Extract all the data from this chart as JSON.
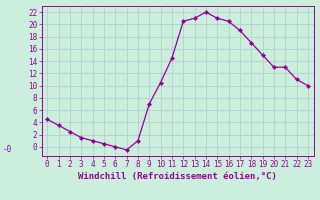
{
  "x": [
    0,
    1,
    2,
    3,
    4,
    5,
    6,
    7,
    8,
    9,
    10,
    11,
    12,
    13,
    14,
    15,
    16,
    17,
    18,
    19,
    20,
    21,
    22,
    23
  ],
  "y": [
    4.5,
    3.5,
    2.5,
    1.5,
    1.0,
    0.5,
    0.0,
    -0.5,
    1.0,
    7.0,
    10.5,
    14.5,
    20.5,
    21.0,
    22.0,
    21.0,
    20.5,
    19.0,
    17.0,
    15.0,
    13.0,
    13.0,
    11.0,
    10.0
  ],
  "line_color": "#990099",
  "marker": "D",
  "marker_size": 2.0,
  "bg_color": "#cceedd",
  "grid_color": "#aacccc",
  "xlabel": "Windchill (Refroidissement éolien,°C)",
  "xlabel_color": "#990099",
  "ylim": [
    -1.5,
    23
  ],
  "xlim": [
    -0.5,
    23.5
  ],
  "yticks": [
    0,
    2,
    4,
    6,
    8,
    10,
    12,
    14,
    16,
    18,
    20,
    22
  ],
  "ytick_labels": [
    "0",
    "2",
    "4",
    "6",
    "8",
    "10",
    "12",
    "14",
    "16",
    "18",
    "20",
    "22"
  ],
  "xticks": [
    0,
    1,
    2,
    3,
    4,
    5,
    6,
    7,
    8,
    9,
    10,
    11,
    12,
    13,
    14,
    15,
    16,
    17,
    18,
    19,
    20,
    21,
    22,
    23
  ],
  "tick_label_size": 5.5,
  "xlabel_size": 6.5,
  "tick_color": "#990099",
  "spine_color": "#990099",
  "linewidth": 0.9
}
